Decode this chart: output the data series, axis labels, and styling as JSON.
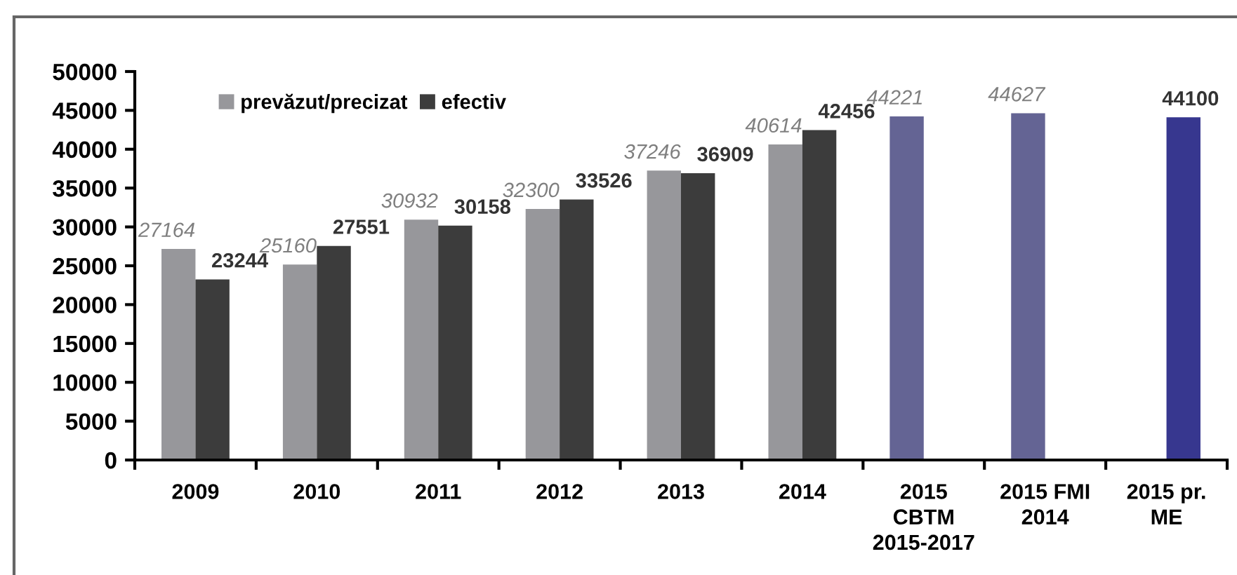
{
  "chart_data": {
    "type": "bar",
    "categories": [
      "2009",
      "2010",
      "2011",
      "2012",
      "2013",
      "2014",
      "2015\nCBTM\n2015-2017",
      "2015 FMI\n2014",
      "2015 pr.\nME"
    ],
    "series": [
      {
        "name": "prevăzut/precizat",
        "color": "#97979b",
        "colors": [
          "#97979b",
          "#97979b",
          "#97979b",
          "#97979b",
          "#97979b",
          "#97979b",
          "#646494",
          "#646494",
          "#646494"
        ],
        "values": [
          27164,
          25160,
          30932,
          32300,
          37246,
          40614,
          44221,
          44627,
          null
        ]
      },
      {
        "name": "efectiv",
        "color": "#3c3c3c",
        "colors": [
          "#3c3c3c",
          "#3c3c3c",
          "#3c3c3c",
          "#3c3c3c",
          "#3c3c3c",
          "#3c3c3c",
          "#37378f",
          "#37378f",
          "#37378f"
        ],
        "values": [
          23244,
          27551,
          30158,
          33526,
          36909,
          42456,
          null,
          null,
          44100
        ]
      }
    ],
    "ylim": [
      0,
      50000
    ],
    "yticks": [
      0,
      5000,
      10000,
      15000,
      20000,
      25000,
      30000,
      35000,
      40000,
      45000,
      50000
    ],
    "data_labels": true,
    "legend": "top left",
    "grid": false
  }
}
